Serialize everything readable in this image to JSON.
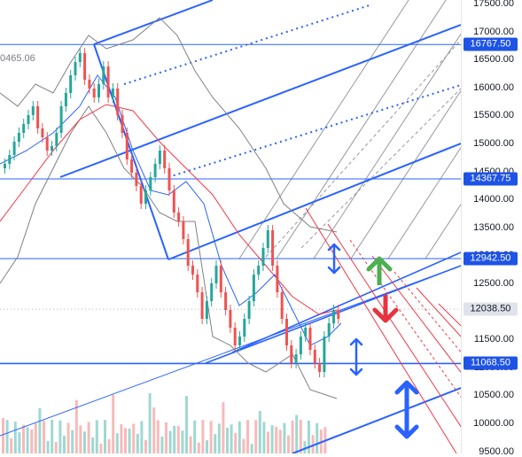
{
  "chart_data": {
    "type": "candlestick",
    "price_axis": {
      "ticks": [
        "17500.00",
        "17000.00",
        "16500.00",
        "16000.00",
        "15500.00",
        "15000.00",
        "14500.00",
        "14000.00",
        "13500.00",
        "13000.00",
        "12500.00",
        "12000.00",
        "11500.00",
        "11000.00",
        "10500.00",
        "10000.00",
        "9500.00"
      ]
    },
    "price_tags": [
      {
        "label": "16767.50",
        "style": "blue"
      },
      {
        "label": "14367.75",
        "style": "blue"
      },
      {
        "label": "12942.50",
        "style": "blue"
      },
      {
        "label": "12038.50",
        "style": "gray"
      },
      {
        "label": "11068.50",
        "style": "blue"
      }
    ],
    "horizontal_levels": [
      "16767.50",
      "14367.75",
      "12942.50",
      "11068.50"
    ],
    "left_partial_label": "0465.06",
    "arrows": [
      {
        "direction": "up",
        "color": "#4caf50"
      },
      {
        "direction": "down",
        "color": "#e8333f"
      },
      {
        "direction": "up-down",
        "color": "#2962ff"
      },
      {
        "direction": "up-down",
        "color": "#2962ff"
      },
      {
        "direction": "up-down",
        "color": "#2962ff"
      }
    ],
    "colors": {
      "up_candle": "#26a69a",
      "down_candle": "#ef5350",
      "pitchfork_blue": "#2962ff",
      "pitchfork_red": "#f23645",
      "bollinger": "#808080",
      "ma_red": "#f23645",
      "ma_blue": "#2962ff"
    }
  }
}
